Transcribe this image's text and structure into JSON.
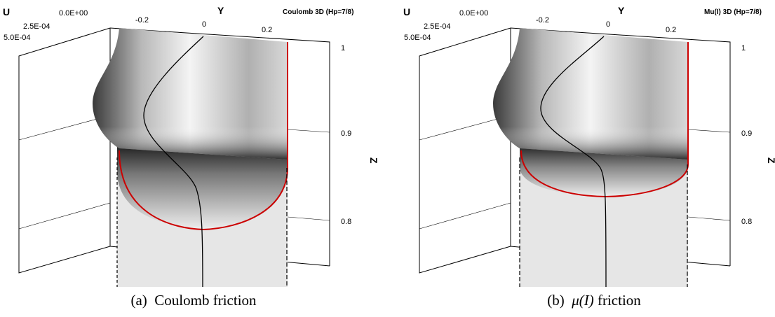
{
  "panels": [
    {
      "title": "Coulomb 3D (Hp=7/8)",
      "caption_label": "(a)",
      "caption_pre": "Coulomb",
      "caption_math": "",
      "caption_post": " friction",
      "front_depth": 0.79
    },
    {
      "title": "Mu(I) 3D (Hp=7/8)",
      "caption_label": "(b)",
      "caption_pre": "",
      "caption_math": "μ(I)",
      "caption_post": " friction",
      "front_depth": 0.83
    }
  ],
  "axes": {
    "u_label": "U",
    "y_label": "Y",
    "z_label": "Z",
    "u_ticks": [
      "5.0E-04",
      "2.5E-04",
      "0.0E+00"
    ],
    "y_ticks": [
      "-0.2",
      "0",
      "0.2"
    ],
    "z_ticks": [
      "1",
      "0.9",
      "0.8"
    ]
  },
  "colors": {
    "front_line": "#cc0000",
    "centerline": "#000000",
    "region_fill": "#e6e6e6"
  }
}
